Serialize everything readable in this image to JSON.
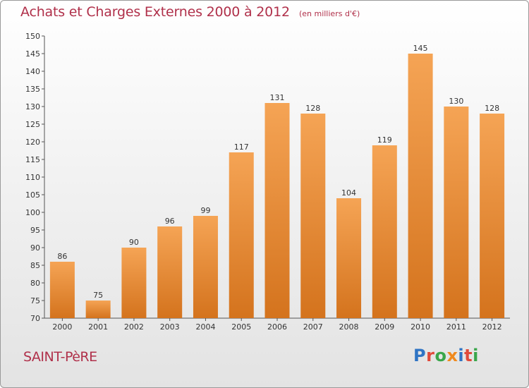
{
  "header": {
    "title": "Achats et Charges Externes 2000 à 2012",
    "subtitle": "(en milliers d'€)"
  },
  "footer": {
    "commune": "SAINT-PèRE",
    "logo_text": "Proxiti"
  },
  "colors": {
    "bar_top": "#f5a455",
    "bar_bottom": "#d4731d",
    "title": "#b0304a",
    "logo": [
      "#2f74c4",
      "#e04a3a",
      "#3aa64b",
      "#f08a1e",
      "#2f74c4",
      "#e04a3a",
      "#3aa64b"
    ]
  },
  "chart_data": {
    "type": "bar",
    "title": "Achats et Charges Externes 2000 à 2012",
    "subtitle": "(en milliers d'€)",
    "categories": [
      "2000",
      "2001",
      "2002",
      "2003",
      "2004",
      "2005",
      "2006",
      "2007",
      "2008",
      "2009",
      "2010",
      "2011",
      "2012"
    ],
    "values": [
      86,
      75,
      90,
      96,
      99,
      117,
      131,
      128,
      104,
      119,
      145,
      130,
      128
    ],
    "ylim": [
      70,
      150
    ],
    "yticks": [
      70,
      75,
      80,
      85,
      90,
      95,
      100,
      105,
      110,
      115,
      120,
      125,
      130,
      135,
      140,
      145,
      150
    ],
    "grid": false,
    "legend": "none"
  }
}
